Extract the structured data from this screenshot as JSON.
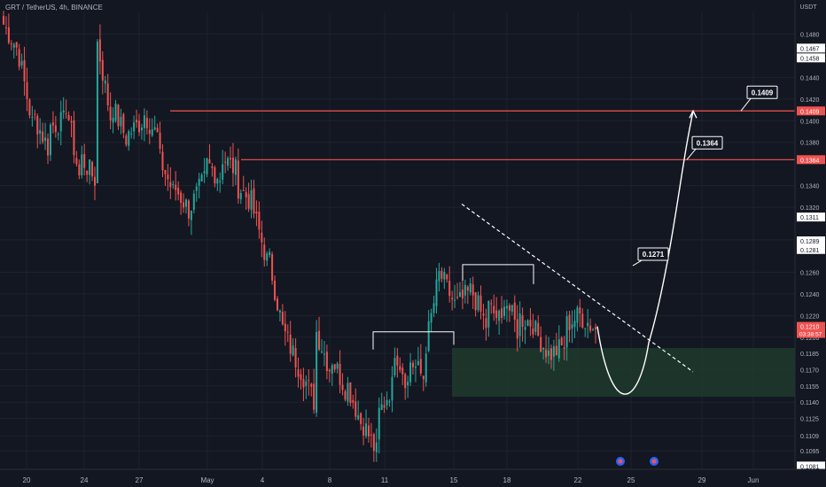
{
  "header": {
    "symbol": "GRT / TetherUS, 4h, BINANCE"
  },
  "colors": {
    "background": "#131722",
    "grid": "#1e222d",
    "up": "#26a69a",
    "down": "#ef5350",
    "axis_text": "#b2b5be",
    "resistance": "#ef5350",
    "zone": "#1f3a2c",
    "white": "#ffffff"
  },
  "chart_data": {
    "type": "candlestick",
    "y_axis_title": "USDT",
    "ylim": [
      0.1078,
      0.15
    ],
    "x_ticks": [
      "20",
      "24",
      "27",
      "May",
      "4",
      "8",
      "11",
      "15",
      "18",
      "22",
      "25",
      "29",
      "Jun"
    ],
    "y_ticks": [
      0.148,
      0.144,
      0.142,
      0.14,
      0.138,
      0.134,
      0.132,
      0.129,
      0.126,
      0.124,
      0.122,
      0.12,
      0.1185,
      0.117,
      0.1155,
      0.114,
      0.1125,
      0.1109,
      0.1095
    ],
    "price_labels": [
      {
        "value": 0.1467,
        "text": "0.1467"
      },
      {
        "value": 0.1458,
        "text": "0.1458"
      },
      {
        "value": 0.1409,
        "text": "0.1409",
        "style": "red"
      },
      {
        "value": 0.1364,
        "text": "0.1364",
        "style": "red"
      },
      {
        "value": 0.1311,
        "text": "0.1311"
      },
      {
        "value": 0.1289,
        "text": "0.1289"
      },
      {
        "value": 0.1281,
        "text": "0.1281"
      },
      {
        "value": 0.121,
        "text": "0.1210",
        "style": "red",
        "sub": "03:38:57"
      },
      {
        "value": 0.1081,
        "text": "0.1081"
      }
    ],
    "resistance_levels": [
      0.1409,
      0.1364
    ],
    "annotations": [
      "0.1409",
      "0.1364",
      "0.1271"
    ],
    "demand_zone": [
      0.1145,
      0.119
    ],
    "trendline": [
      {
        "x": "May 15",
        "y": 0.1323
      },
      {
        "x": "May 24",
        "y": 0.1168
      }
    ],
    "range_markers": [
      0.1205,
      0.1267
    ],
    "projected_path": [
      0.121,
      0.117,
      0.1271,
      0.1364,
      0.1409
    ],
    "anchors": [
      [
        0.1489,
        0.1463
      ],
      [
        0.1459,
        0.1385
      ],
      [
        0.1402,
        0.137
      ],
      [
        0.1395,
        0.14
      ],
      [
        0.1415,
        0.1335
      ],
      [
        0.1365,
        0.1342
      ],
      [
        0.1472,
        0.139
      ],
      [
        0.1412,
        0.1378
      ],
      [
        0.1388,
        0.1402
      ],
      [
        0.1406,
        0.1382
      ],
      [
        0.1364,
        0.1328
      ],
      [
        0.1337,
        0.1314
      ],
      [
        0.1322,
        0.135
      ],
      [
        0.136,
        0.1345
      ],
      [
        0.1366,
        0.1352
      ],
      [
        0.1339,
        0.1322
      ],
      [
        0.1315,
        0.1262
      ],
      [
        0.127,
        0.1195
      ],
      [
        0.1202,
        0.1168
      ],
      [
        0.117,
        0.1135
      ],
      [
        0.1205,
        0.1165
      ],
      [
        0.118,
        0.1148
      ],
      [
        0.1155,
        0.1115
      ],
      [
        0.112,
        0.1088
      ],
      [
        0.113,
        0.116
      ],
      [
        0.119,
        0.115
      ],
      [
        0.1178,
        0.116
      ],
      [
        0.1193,
        0.127
      ],
      [
        0.1255,
        0.1225
      ],
      [
        0.123,
        0.1245
      ],
      [
        0.124,
        0.1205
      ],
      [
        0.1228,
        0.121
      ],
      [
        0.1238,
        0.12
      ],
      [
        0.1218,
        0.1212
      ],
      [
        0.1205,
        0.118
      ],
      [
        0.1185,
        0.1193
      ],
      [
        0.1212,
        0.1222
      ],
      [
        0.1218,
        0.1205
      ]
    ]
  }
}
